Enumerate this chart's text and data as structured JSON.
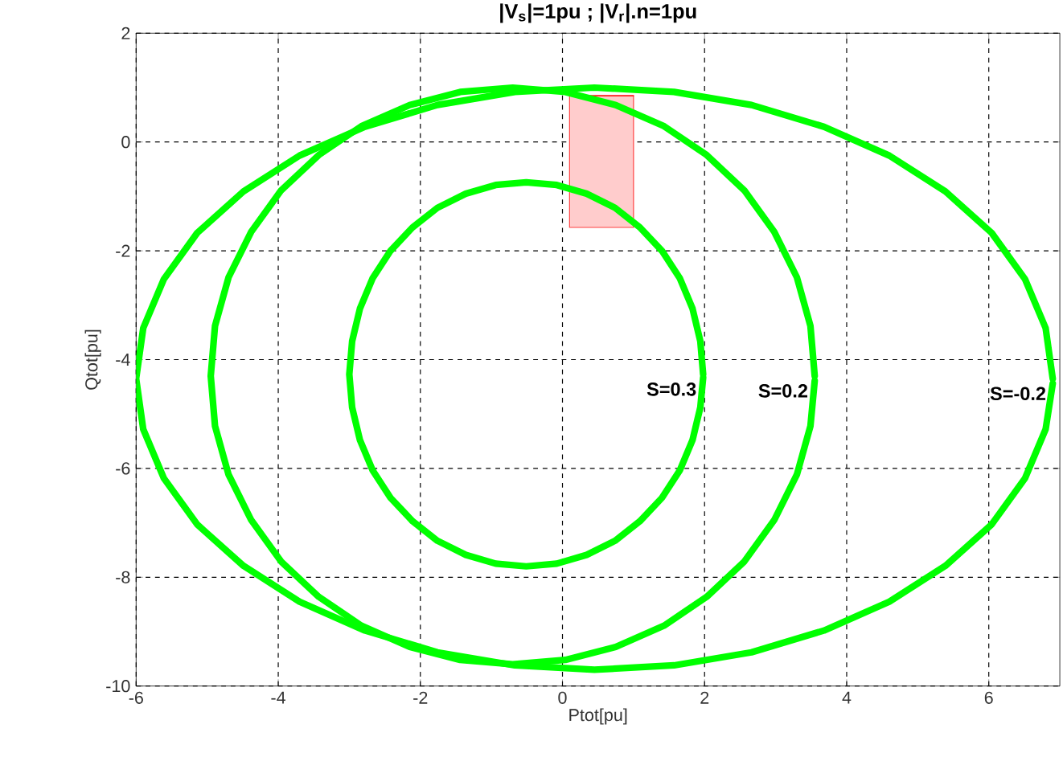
{
  "chart_data": {
    "type": "line",
    "title": "|V$_{s}$|=1pu ; |V$_{r}$|.n=1pu",
    "xlabel": "Ptot[pu]",
    "ylabel": "Qtot[pu]",
    "xlim": [
      -6,
      7
    ],
    "ylim": [
      -10,
      2
    ],
    "xticks": [
      -6,
      -4,
      -2,
      0,
      2,
      4,
      6
    ],
    "yticks": [
      -10,
      -8,
      -6,
      -4,
      -2,
      0,
      2
    ],
    "grid": true,
    "series": [
      {
        "color": "#ff0000",
        "x": [
          0.1,
          1.0
        ],
        "values": [
          0.85,
          0.85
        ],
        "lower": [
          -1.57,
          -1.57
        ],
        "upper": [
          0.85,
          0.85
        ]
      },
      {
        "color": "#00ff00",
        "x": [
          1.98,
          1.94,
          1.83,
          1.65,
          1.4,
          1.09,
          0.74,
          0.34,
          -0.08,
          -0.51,
          -0.94,
          -1.36,
          -1.76,
          -2.11,
          -2.42,
          -2.67,
          -2.85,
          -2.96,
          -3.0,
          -2.96,
          -2.85,
          -2.67,
          -2.42,
          -2.11,
          -1.76,
          -1.36,
          -0.94,
          -0.51,
          -0.08,
          0.34,
          0.74,
          1.09,
          1.4,
          1.65,
          1.83,
          1.94,
          1.98
        ],
        "values": [
          -4.27,
          -3.66,
          -3.06,
          -2.5,
          -2.0,
          -1.57,
          -1.21,
          -0.95,
          -0.79,
          -0.74,
          -0.79,
          -0.95,
          -1.21,
          -1.57,
          -2.0,
          -2.5,
          -3.06,
          -3.66,
          -4.27,
          -4.88,
          -5.48,
          -6.04,
          -6.54,
          -6.97,
          -7.33,
          -7.59,
          -7.75,
          -7.8,
          -7.75,
          -7.59,
          -7.33,
          -6.97,
          -6.54,
          -6.04,
          -5.48,
          -4.88,
          -4.33
        ]
      },
      {
        "color": "#00ff00",
        "x": [
          3.55,
          3.49,
          3.3,
          2.98,
          2.56,
          2.03,
          1.43,
          0.75,
          0.04,
          -0.7,
          -1.44,
          -2.15,
          -2.83,
          -3.43,
          -3.96,
          -4.38,
          -4.7,
          -4.89,
          -4.95,
          -4.89,
          -4.7,
          -4.38,
          -3.96,
          -3.43,
          -2.83,
          -2.15,
          -1.44,
          -0.7,
          0.04,
          0.75,
          1.43,
          2.03,
          2.56,
          2.98,
          3.3,
          3.49,
          3.55
        ],
        "values": [
          -4.3,
          -3.38,
          -2.49,
          -1.65,
          -0.89,
          -0.24,
          0.29,
          0.68,
          0.92,
          1.0,
          0.92,
          0.68,
          0.29,
          -0.24,
          -0.89,
          -1.65,
          -2.49,
          -3.38,
          -4.3,
          -5.22,
          -6.11,
          -6.95,
          -7.71,
          -8.36,
          -8.89,
          -9.28,
          -9.52,
          -9.6,
          -9.52,
          -9.28,
          -8.89,
          -8.36,
          -7.71,
          -6.95,
          -6.11,
          -5.22,
          -4.39
        ]
      },
      {
        "color": "#00ff00",
        "x": [
          6.9,
          6.8,
          6.51,
          6.04,
          5.39,
          4.6,
          3.68,
          2.66,
          1.57,
          0.45,
          -0.67,
          -1.76,
          -2.78,
          -3.7,
          -4.49,
          -5.14,
          -5.61,
          -5.9,
          -6.0,
          -5.9,
          -5.61,
          -5.14,
          -4.49,
          -3.7,
          -2.78,
          -1.76,
          -0.67,
          0.45,
          1.57,
          2.66,
          3.68,
          4.6,
          5.39,
          6.04,
          6.51,
          6.8,
          6.9
        ],
        "values": [
          -4.35,
          -3.42,
          -2.52,
          -1.67,
          -0.91,
          -0.25,
          0.28,
          0.68,
          0.92,
          1.0,
          0.92,
          0.68,
          0.28,
          -0.25,
          -0.91,
          -1.67,
          -2.52,
          -3.42,
          -4.35,
          -5.28,
          -6.18,
          -7.03,
          -7.79,
          -8.45,
          -8.98,
          -9.38,
          -9.62,
          -9.7,
          -9.62,
          -9.38,
          -8.98,
          -8.45,
          -7.79,
          -7.03,
          -6.18,
          -5.28,
          -4.44
        ]
      }
    ],
    "annotations": [
      {
        "text": "S=0.3",
        "x": 1.98,
        "y": -4.27
      },
      {
        "text": "S=0.2",
        "x": 3.55,
        "y": -4.3
      },
      {
        "text": "S=-0.2",
        "x": 6.9,
        "y": -4.35
      }
    ]
  }
}
